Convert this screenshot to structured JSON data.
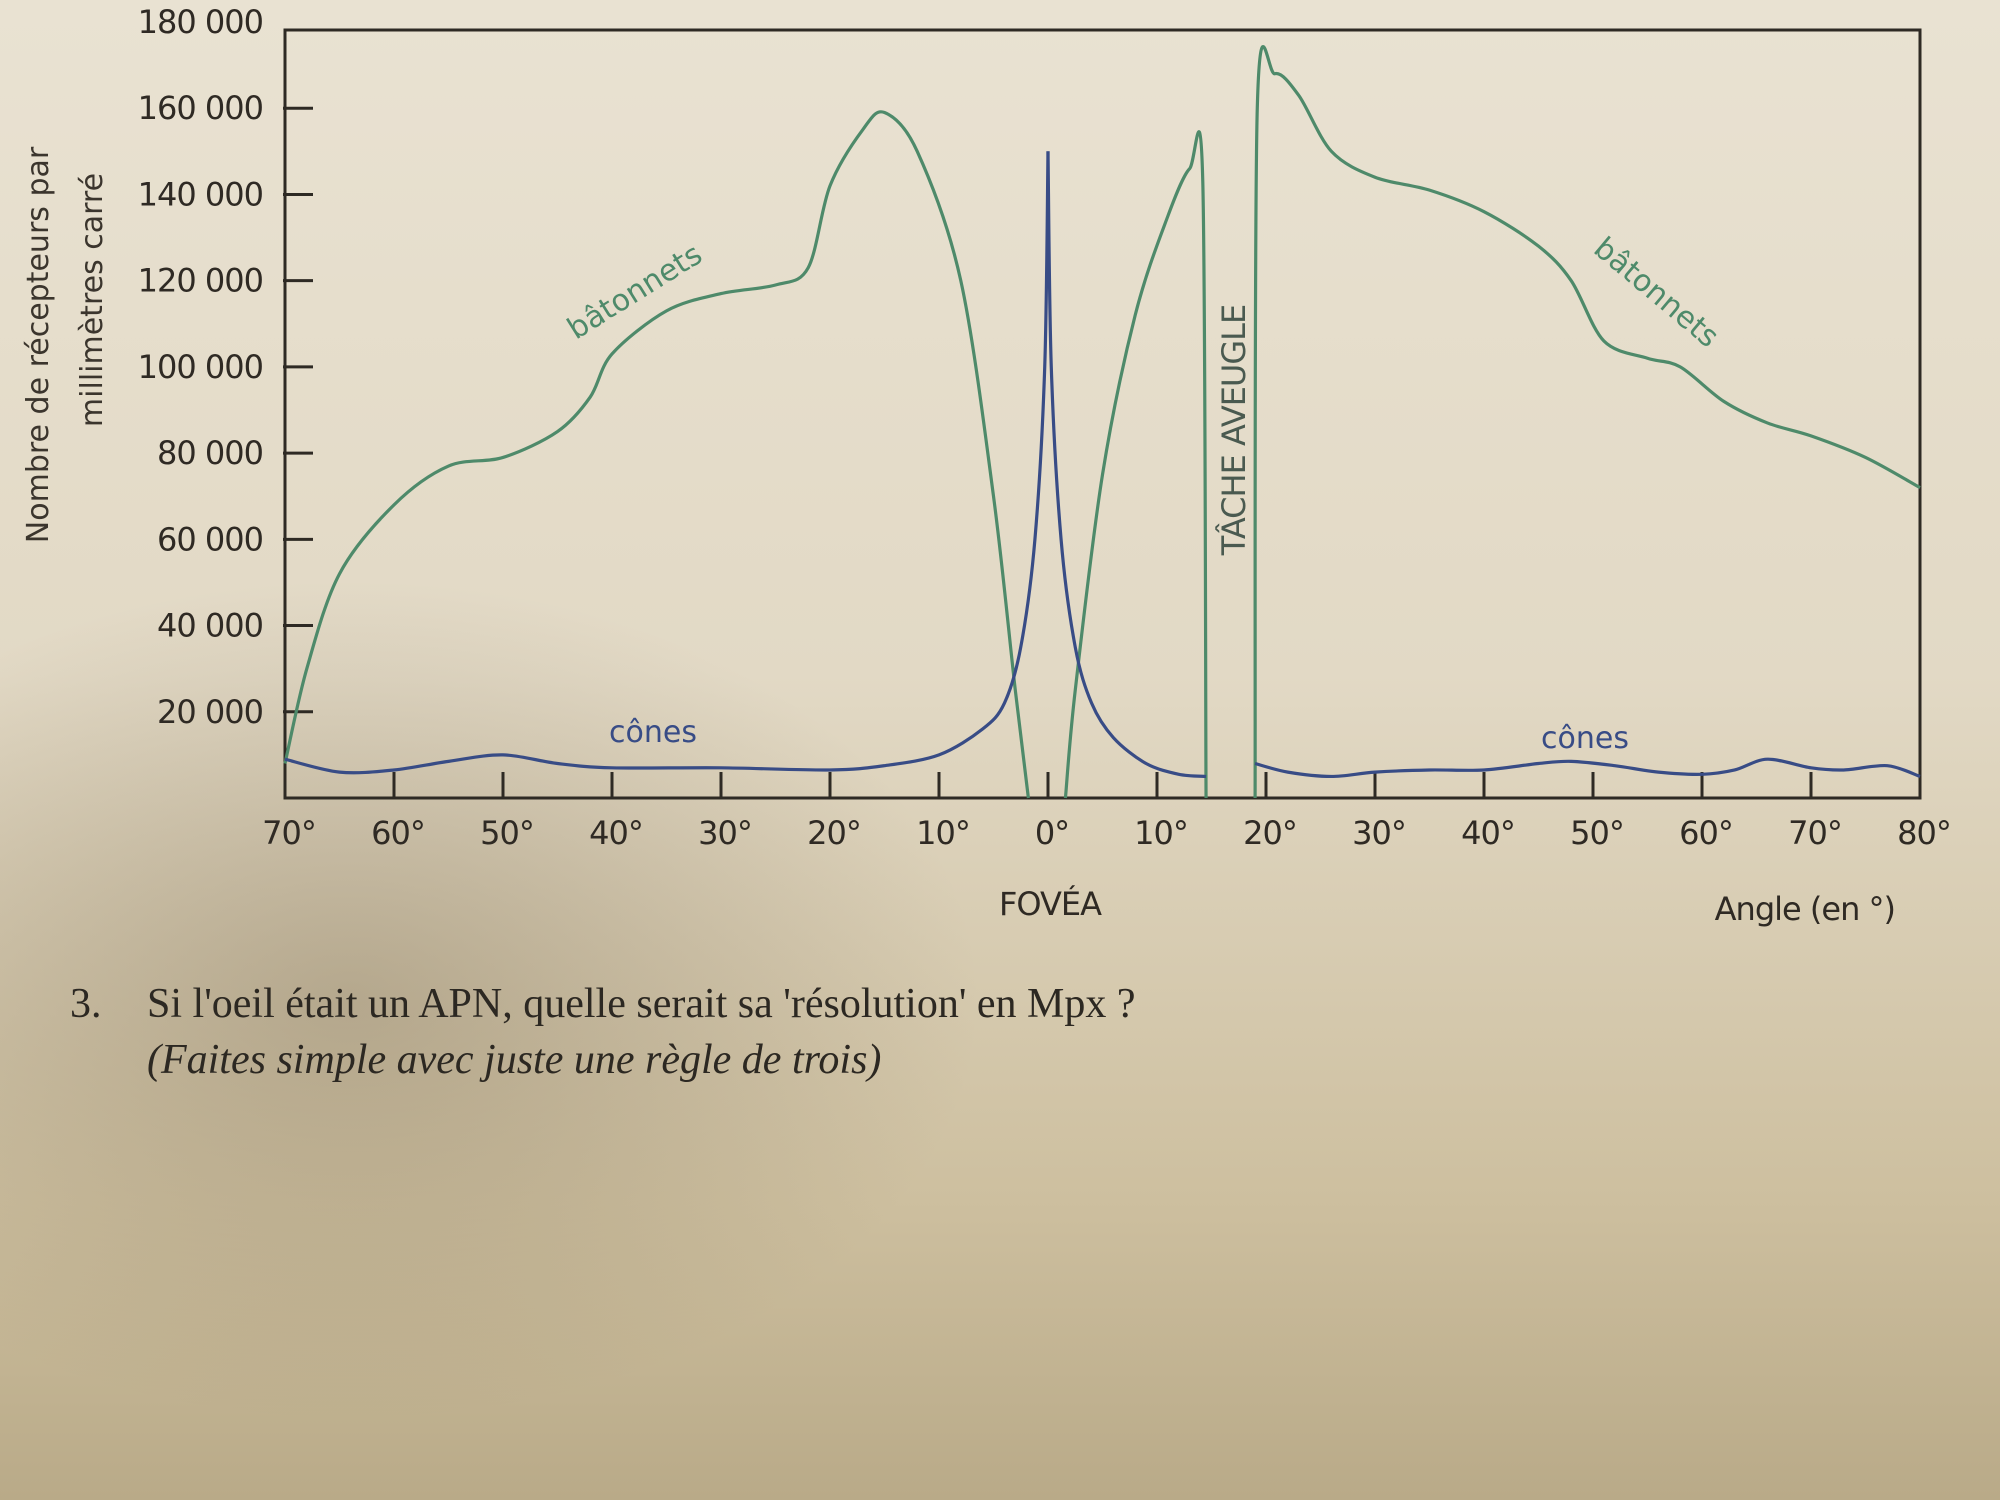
{
  "chart_data": {
    "type": "line",
    "title": "",
    "ylabel_lines": [
      "Nombre de récepteurs par",
      "millimètres carré"
    ],
    "xlabel": "Angle (en °)",
    "xlabel_center": "FOVÉA",
    "annotation": "TÂCHE AVEUGLE",
    "ylim": [
      0,
      180000
    ],
    "xlim": [
      -70,
      80
    ],
    "y_ticks": [
      {
        "value": 180000,
        "label": "180 000"
      },
      {
        "value": 160000,
        "label": "160 000"
      },
      {
        "value": 140000,
        "label": "140 000"
      },
      {
        "value": 120000,
        "label": "120 000"
      },
      {
        "value": 100000,
        "label": "100 000"
      },
      {
        "value": 80000,
        "label": "80 000"
      },
      {
        "value": 60000,
        "label": "60 000"
      },
      {
        "value": 40000,
        "label": "40 000"
      },
      {
        "value": 20000,
        "label": "20 000"
      }
    ],
    "x_ticks": [
      {
        "value": -70,
        "label": "70°"
      },
      {
        "value": -60,
        "label": "60°"
      },
      {
        "value": -50,
        "label": "50°"
      },
      {
        "value": -40,
        "label": "40°"
      },
      {
        "value": -30,
        "label": "30°"
      },
      {
        "value": -20,
        "label": "20°"
      },
      {
        "value": -10,
        "label": "10°"
      },
      {
        "value": 0,
        "label": "0°"
      },
      {
        "value": 10,
        "label": "10°"
      },
      {
        "value": 20,
        "label": "20°"
      },
      {
        "value": 30,
        "label": "30°"
      },
      {
        "value": 40,
        "label": "40°"
      },
      {
        "value": 50,
        "label": "50°"
      },
      {
        "value": 60,
        "label": "60°"
      },
      {
        "value": 70,
        "label": "70°"
      },
      {
        "value": 80,
        "label": "80°"
      }
    ],
    "blind_spot": [
      14.5,
      19
    ],
    "series": [
      {
        "name": "bâtonnets",
        "label_left": "bâtonnets",
        "label_right": "bâtonnets",
        "color": "#4e8a6a",
        "segments": [
          {
            "x": [
              -70,
              -68,
              -65,
              -60,
              -55,
              -50,
              -45,
              -42,
              -40,
              -35,
              -30,
              -25,
              -22,
              -20,
              -17,
              -15,
              -12,
              -8,
              -5,
              -3,
              -1.8
            ],
            "y": [
              8000,
              30000,
              52000,
              68000,
              77000,
              79000,
              85000,
              93000,
              103000,
              113000,
              117000,
              119000,
              123000,
              142000,
              155000,
              159000,
              150000,
              120000,
              70000,
              25000,
              0
            ]
          },
          {
            "x": [
              1.6,
              2.5,
              5,
              8,
              11,
              13,
              14.2,
              14.5
            ],
            "y": [
              0,
              25000,
              75000,
              112000,
              135000,
              146000,
              143000,
              0
            ]
          },
          {
            "x": [
              19,
              19.2,
              20.8,
              23,
              26,
              30,
              35,
              40,
              45,
              48,
              51,
              55,
              58,
              62,
              66,
              70,
              75,
              80
            ],
            "y": [
              0,
              160000,
              168000,
              163000,
              150000,
              144000,
              141000,
              136000,
              128000,
              120000,
              106000,
              102000,
              100000,
              92000,
              87000,
              84000,
              79000,
              72000
            ]
          }
        ]
      },
      {
        "name": "cônes",
        "label_left": "cônes",
        "label_right": "cônes",
        "color": "#384c86",
        "segments": [
          {
            "x": [
              -70,
              -65,
              -60,
              -55,
              -50,
              -45,
              -40,
              -30,
              -20,
              -15,
              -10,
              -6,
              -4,
              -2.5,
              -1.2,
              -0.3,
              0
            ],
            "y": [
              9000,
              6000,
              6500,
              8500,
              10000,
              8000,
              7000,
              7000,
              6500,
              7500,
              10000,
              16000,
              22000,
              35000,
              60000,
              100000,
              150000
            ]
          },
          {
            "x": [
              0,
              0.3,
              1.2,
              2.5,
              4,
              6,
              9,
              12,
              14.5
            ],
            "y": [
              150000,
              100000,
              60000,
              35000,
              22000,
              14000,
              8000,
              5500,
              5000
            ]
          },
          {
            "x": [
              19,
              22,
              26,
              30,
              35,
              40,
              45,
              48,
              52,
              56,
              60,
              63,
              66,
              70,
              73,
              77,
              80
            ],
            "y": [
              8000,
              6000,
              5000,
              6000,
              6500,
              6500,
              8000,
              8500,
              7500,
              6000,
              5500,
              6500,
              9000,
              7000,
              6500,
              7500,
              5000
            ]
          }
        ]
      }
    ]
  },
  "question": {
    "number": "3.",
    "text": "Si l'oeil était un APN, quelle serait sa 'résolution' en Mpx ?",
    "hint": "(Faites simple avec juste une règle de trois)"
  },
  "colors": {
    "axis": "#2e2a24",
    "annotation": "#4a5a50"
  }
}
